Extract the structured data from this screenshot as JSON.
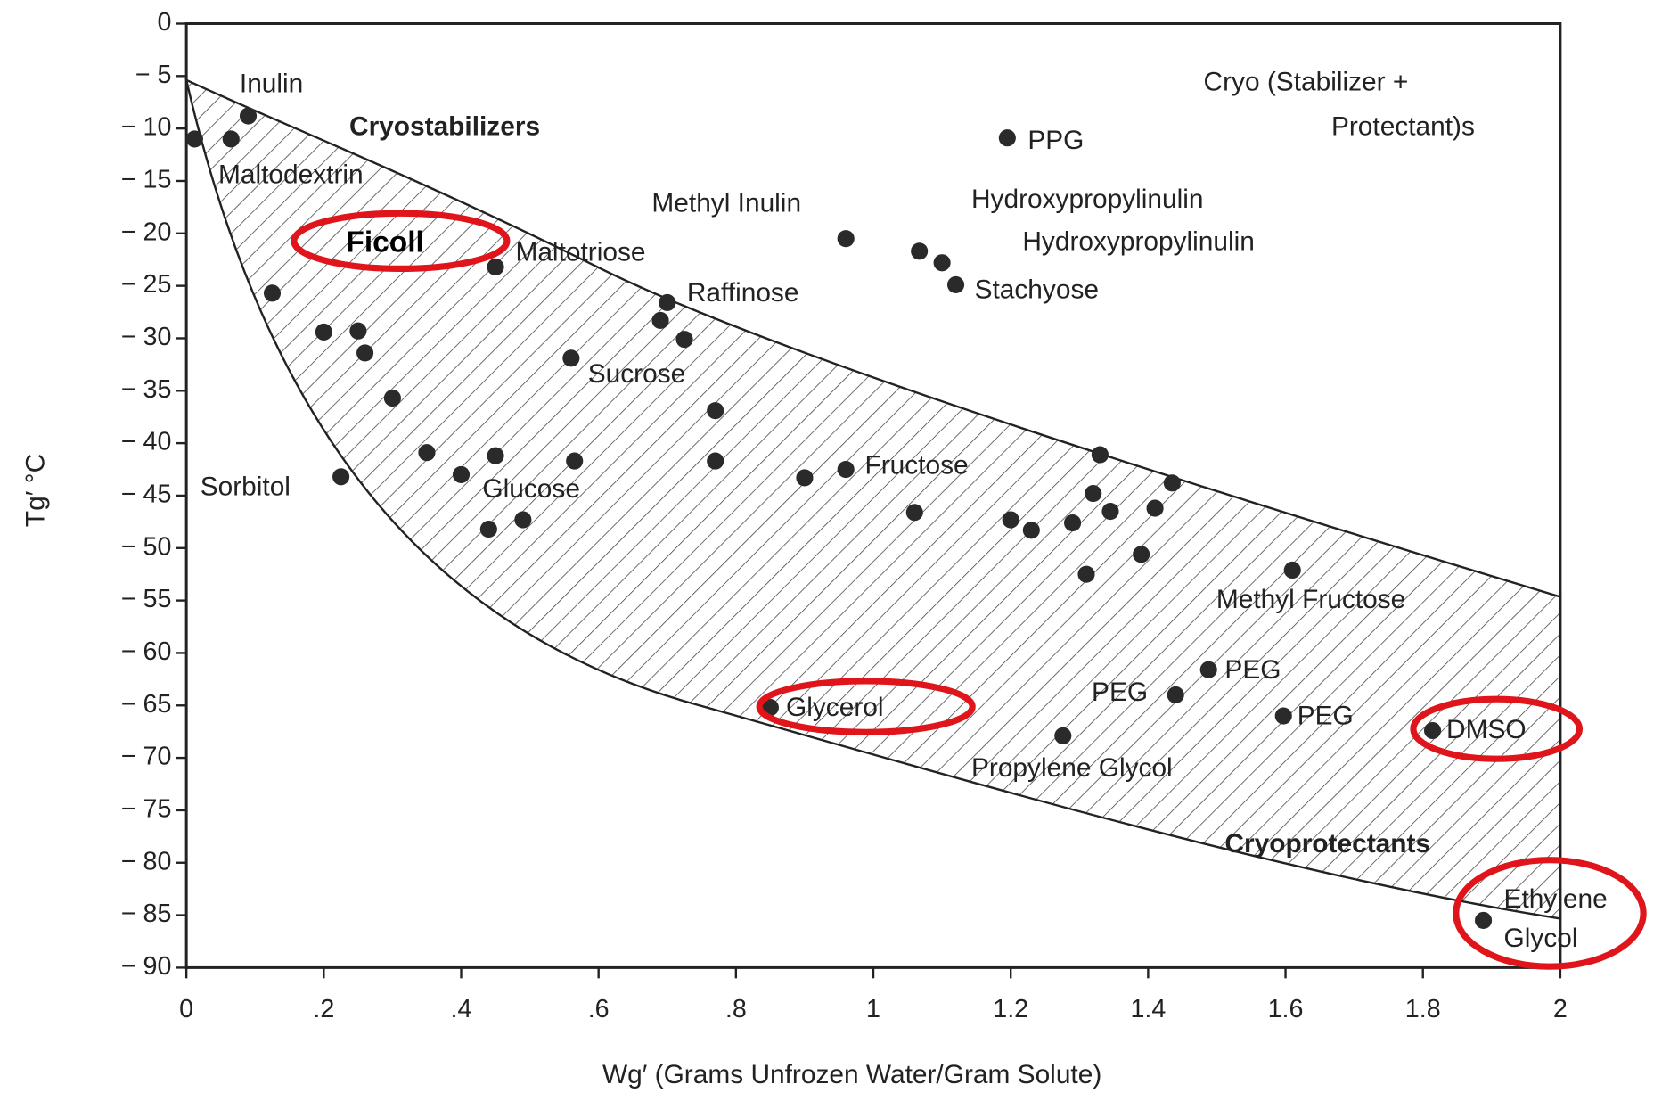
{
  "chart_data": {
    "type": "scatter",
    "xlabel": "Wg′ (Grams Unfrozen Water/Gram Solute)",
    "ylabel": "Tg′ °C",
    "xlim": [
      0,
      2
    ],
    "ylim": [
      -90,
      0
    ],
    "xticks": [
      0,
      {
        "value": 0.2,
        "label": ".2"
      },
      {
        "value": 0.4,
        "label": ".4"
      },
      {
        "value": 0.6,
        "label": ".6"
      },
      {
        "value": 0.8,
        "label": ".8"
      },
      1,
      1.2,
      1.4,
      1.6,
      1.8,
      2
    ],
    "yticks": [
      {
        "value": -90,
        "label": "− 90"
      },
      {
        "value": -85,
        "label": "− 85"
      },
      {
        "value": -80,
        "label": "− 80"
      },
      {
        "value": -75,
        "label": "− 75"
      },
      {
        "value": -70,
        "label": "− 70"
      },
      {
        "value": -65,
        "label": "− 65"
      },
      {
        "value": -60,
        "label": "− 60"
      },
      {
        "value": -55,
        "label": "− 55"
      },
      {
        "value": -50,
        "label": "− 50"
      },
      {
        "value": -45,
        "label": "− 45"
      },
      {
        "value": -40,
        "label": "− 40"
      },
      {
        "value": -35,
        "label": "− 35"
      },
      {
        "value": -30,
        "label": "− 30"
      },
      {
        "value": -25,
        "label": "− 25"
      },
      {
        "value": -20,
        "label": "− 20"
      },
      {
        "value": -15,
        "label": "− 15"
      },
      {
        "value": -10,
        "label": "− 10"
      },
      {
        "value": -5,
        "label": "− 5"
      },
      0
    ],
    "color": "#2a2a2a",
    "x": [
      0.012,
      0.065,
      0.09,
      0.125,
      0.2,
      0.25,
      0.26,
      0.3,
      0.35,
      0.4,
      0.45,
      0.44,
      0.49,
      0.45,
      0.225,
      0.56,
      0.565,
      0.7,
      0.69,
      0.725,
      0.77,
      0.77,
      0.9,
      0.96,
      0.96,
      0.85,
      1.06,
      1.067,
      1.1,
      1.12,
      1.195,
      1.2,
      1.23,
      1.276,
      1.29,
      1.31,
      1.32,
      1.33,
      1.345,
      1.39,
      1.41,
      1.435,
      1.44,
      1.488,
      1.597,
      1.61,
      1.814,
      1.888
    ],
    "y": [
      -11,
      -11,
      -8.8,
      -25.7,
      -29.4,
      -29.3,
      -31.4,
      -35.7,
      -40.9,
      -43,
      -41.2,
      -48.2,
      -47.3,
      -23.2,
      -43.2,
      -31.9,
      -41.7,
      -26.6,
      -28.3,
      -30.1,
      -36.9,
      -41.7,
      -43.3,
      -42.5,
      -20.5,
      -65.2,
      -46.6,
      -21.7,
      -22.8,
      -24.9,
      -10.9,
      -47.3,
      -48.3,
      -67.9,
      -47.6,
      -52.5,
      -44.8,
      -41.1,
      -46.5,
      -50.6,
      -46.2,
      -43.8,
      -64,
      -61.6,
      -66,
      -52.1,
      -67.4,
      -85.5
    ],
    "annotations": [
      "Inulin",
      "Cryostabilizers",
      "Maltodextrin",
      "Ficoll",
      "Maltotriose",
      "Methyl Inulin",
      "Raffinose",
      "Sucrose",
      "Sorbitol",
      "Glucose",
      "Fructose",
      "PPG",
      "Hydroxypropylinulin",
      "Hydroxypropylinulin",
      "Stachyose",
      "Cryo (Stabilizer +",
      "Protectant)s",
      "Methyl Fructose",
      "PEG",
      "PEG",
      "PEG",
      "Glycerol",
      "DMSO",
      "Propylene Glycol",
      "Cryoprotectants",
      "Ethylene",
      "Glycol"
    ]
  }
}
